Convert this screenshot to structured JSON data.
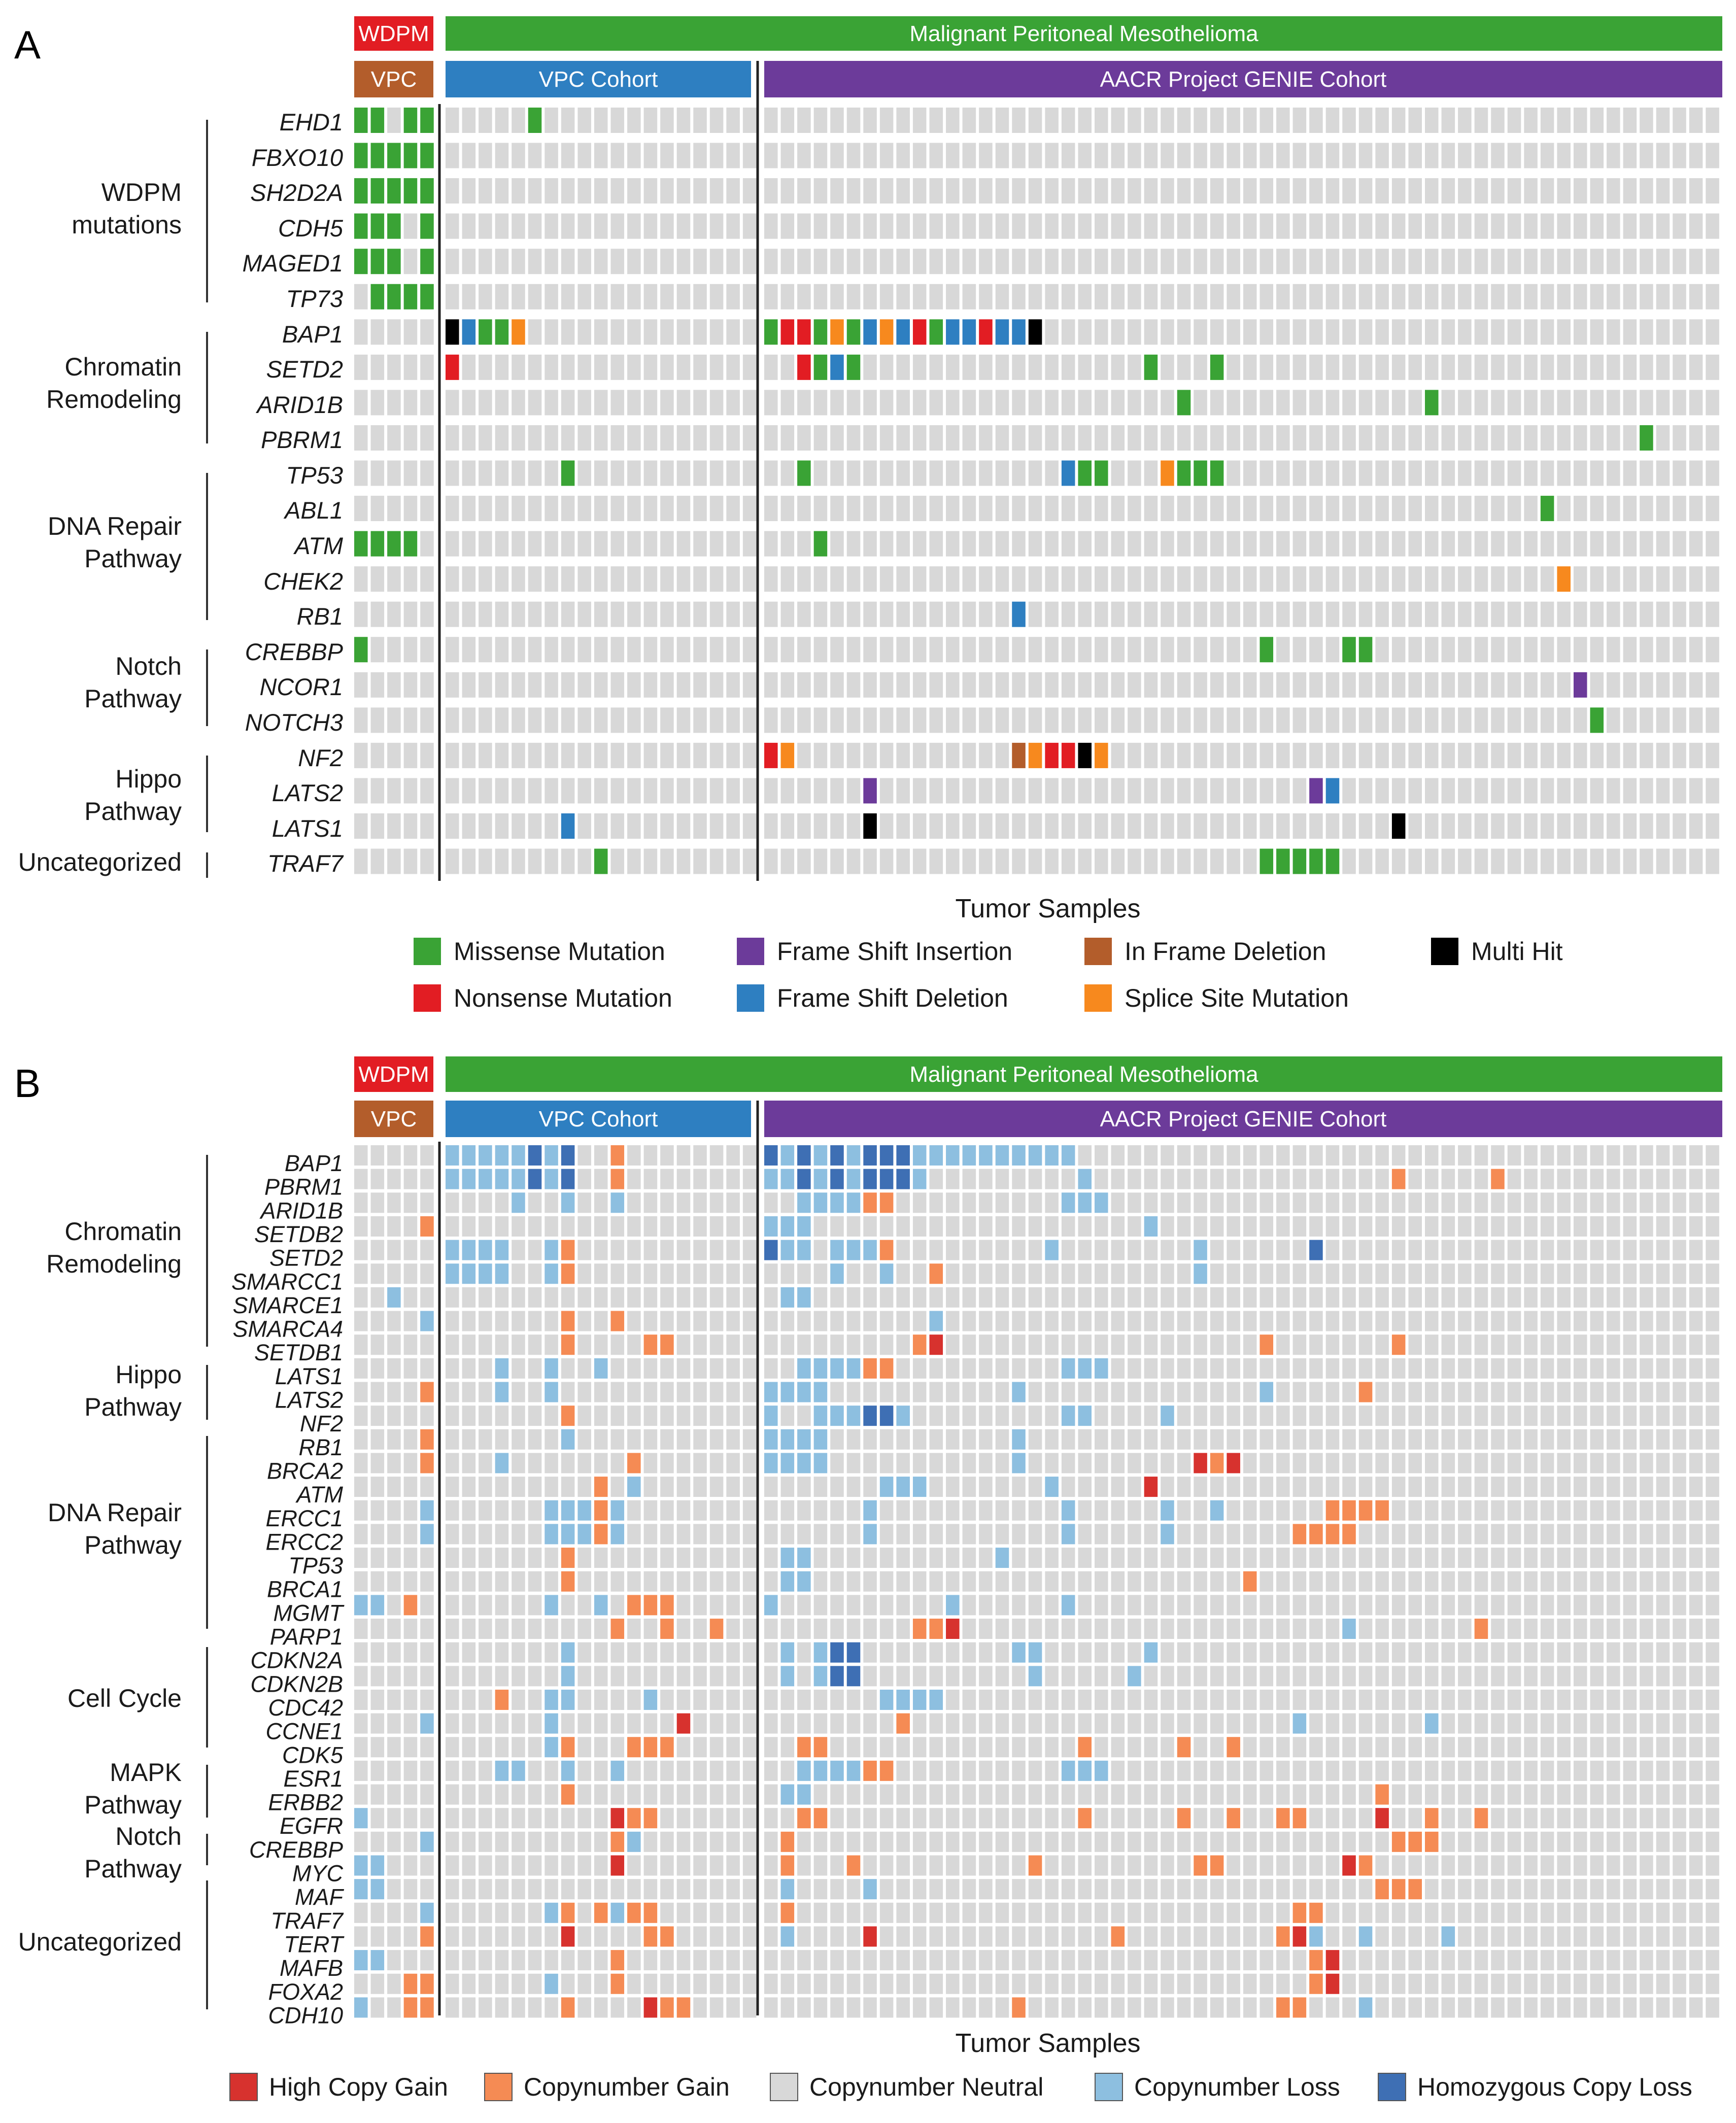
{
  "colors": {
    "wdpm": "#e21d23",
    "vpc": "#b35d2b",
    "mpm": "#3aa335",
    "vpc_cohort": "#2e7fc1",
    "genie": "#6c3b9a",
    "neutral": "#d8d8d8"
  },
  "chart_data": [
    {
      "panel": "A",
      "type": "heatmap",
      "title": "Malignant Peritoneal Mesothelioma",
      "xlabel": "Tumor Samples",
      "groups": [
        {
          "top": "WDPM",
          "label": "VPC",
          "n": 5
        },
        {
          "top": "Malignant Peritoneal Mesothelioma",
          "label": "VPC Cohort",
          "n": 19
        },
        {
          "top": "Malignant Peritoneal Mesothelioma",
          "label": "AACR Project GENIE Cohort",
          "n": 58
        }
      ],
      "gene_groups": [
        {
          "name": "WDPM mutations",
          "genes": [
            "EHD1",
            "FBXO10",
            "SH2D2A",
            "CDH5",
            "MAGED1",
            "TP73"
          ]
        },
        {
          "name": "Chromatin Remodeling",
          "genes": [
            "BAP1",
            "SETD2",
            "ARID1B",
            "PBRM1"
          ]
        },
        {
          "name": "DNA Repair Pathway",
          "genes": [
            "TP53",
            "ABL1",
            "ATM",
            "CHEK2",
            "RB1"
          ]
        },
        {
          "name": "Notch Pathway",
          "genes": [
            "CREBBP",
            "NCOR1",
            "NOTCH3"
          ]
        },
        {
          "name": "Hippo Pathway",
          "genes": [
            "NF2",
            "LATS2",
            "LATS1"
          ]
        },
        {
          "name": "Uncategorized",
          "genes": [
            "TRAF7"
          ]
        }
      ],
      "legend": [
        {
          "code": "M",
          "label": "Missense Mutation",
          "color": "#3aa335"
        },
        {
          "code": "I",
          "label": "Frame Shift Insertion",
          "color": "#6c3b9a"
        },
        {
          "code": "F",
          "label": "In Frame Deletion",
          "color": "#b35d2b"
        },
        {
          "code": "X",
          "label": "Multi Hit",
          "color": "#000000"
        },
        {
          "code": "N",
          "label": "Nonsense Mutation",
          "color": "#e21d23"
        },
        {
          "code": "D",
          "label": "Frame Shift Deletion",
          "color": "#2e7fc1"
        },
        {
          "code": "S",
          "label": "Splice Site Mutation",
          "color": "#f7891e"
        }
      ],
      "matrix": {
        "EHD1": "MM.MM|.....M.............|..........................................................",
        "FBXO10": "MMMMM|...................|..........................................................",
        "SH2D2A": "MMMMM|...................|..........................................................",
        "CDH5": "MMM.M|...................|..........................................................",
        "MAGED1": "MMM.M|...................|..........................................................",
        "TP73": ".MMMM|...................|..........................................................",
        "BAP1": ".....|XDMMS..............|MNNMSMDSDNMDDNDDX.........................................",
        "SETD2": ".....|N..................|..NMDM.................M...M..............................",
        "ARID1B": ".....|...................|.........................M..............M.................",
        "PBRM1": ".....|...................|.....................................................M....",
        "TP53": ".....|.......M...........|..M...............DMM...SMMM............................",
        "ABL1": ".....|...................|...............................................M..........",
        "ATM": "MMMM.|...................|...M......................................................",
        "CHEK2": ".....|...................|................................................S.........",
        "RB1": ".....|...................|...............D..........................................",
        "CREBBP": "M....|...................|..............................M....MM.....................",
        "NCOR1": ".....|...................|.................................................I........",
        "NOTCH3": ".....|...................|..................................................M.......",
        "NF2": ".....|...................|NS.............FSNNXS..................................",
        "LATS2": ".....|...................|......I..........................ID........................",
        "LATS1": ".....|.......D...........|......X...............................X...................",
        "TRAF7": ".....|.........M.........|..............................MMMMM...................."
      }
    },
    {
      "panel": "B",
      "type": "heatmap",
      "title": "Malignant Peritoneal Mesothelioma",
      "xlabel": "Tumor Samples",
      "groups": [
        {
          "top": "WDPM",
          "label": "VPC",
          "n": 5
        },
        {
          "top": "Malignant Peritoneal Mesothelioma",
          "label": "VPC Cohort",
          "n": 19
        },
        {
          "top": "Malignant Peritoneal Mesothelioma",
          "label": "AACR Project GENIE Cohort",
          "n": 58
        }
      ],
      "gene_groups": [
        {
          "name": "Chromatin Remodeling",
          "genes": [
            "BAP1",
            "PBRM1",
            "ARID1B",
            "SETDB2",
            "SETD2",
            "SMARCC1",
            "SMARCE1",
            "SMARCA4",
            "SETDB1"
          ]
        },
        {
          "name": "Hippo Pathway",
          "genes": [
            "LATS1",
            "LATS2",
            "NF2"
          ]
        },
        {
          "name": "DNA Repair Pathway",
          "genes": [
            "RB1",
            "BRCA2",
            "ATM",
            "ERCC1",
            "ERCC2",
            "TP53",
            "BRCA1",
            "MGMT",
            "PARP1"
          ]
        },
        {
          "name": "Cell Cycle",
          "genes": [
            "CDKN2A",
            "CDKN2B",
            "CDC42",
            "CCNE1",
            "CDK5"
          ]
        },
        {
          "name": "MAPK Pathway",
          "genes": [
            "ESR1",
            "ERBB2"
          ]
        },
        {
          "name": "Notch Pathway",
          "genes": [
            "EGFR",
            "CREBBP"
          ]
        },
        {
          "name": "Uncategorized",
          "genes": [
            "MYC",
            "MAF",
            "TRAF7",
            "TERT",
            "MAFB",
            "FOXA2",
            "CDH10"
          ]
        }
      ],
      "legend": [
        {
          "code": "H",
          "label": "High Copy Gain",
          "color": "#d7322e"
        },
        {
          "code": "G",
          "label": "Copynumber Gain",
          "color": "#f58b54"
        },
        {
          "code": ".",
          "label": "Copynumber Neutral",
          "color": "#d8d8d8"
        },
        {
          "code": "L",
          "label": "Copynumber Loss",
          "color": "#8dbfe0"
        },
        {
          "code": "Z",
          "label": "Homozygous Copy Loss",
          "color": "#3e6fb4"
        }
      ],
      "matrix": {
        "BAP1": ".....|LLLLLZLZ..G........|ZLZLZLZZZLLLLLLLLLL.......................................",
        "PBRM1": ".....|LLLLLZLZ..G........|LLZLZLZZZL.........L..................G.....G.............",
        "ARID1B": ".....|....L..L..L........|..LLLLGG..........LLL.................................",
        "SETDB2": "....G|...................|LLL....................L......................................",
        "SETD2": ".....|LLLL..LG...........|ZLL.LLLG.........L........L......Z.................",
        "SMARCC1": ".....|LLLL..LG...........|....L..L..G...............L........................",
        "SMARCE1": "..L..|...................|.LL..........................................................",
        "SMARCA4": "....L|.......G..G........|..........L............................................",
        "SETDB1": ".....|.......G....GG.....|.........GH...................G.......G.........",
        "LATS1": ".....|...L..L..L........|..LLLLGG..........LLL.................................",
        "LATS2": "....G|...L..L...........|LLLL...........L..............L.....G..........",
        "NF2": ".....|.......G...........|L..LLLZZL.........LL....L...................................",
        "RB1": "....G|.......L...........|LLLL...........L..............................................",
        "BRCA2": "....G|...L.......G.......|LLLL...........L..........HGH.......................",
        "ATM": ".....|.........G.L.......|.......LLL.......L.....H..............................",
        "ERCC1": "....L|......LLLGL........|......L...........L.....L..L......GGGG..........",
        "ERCC2": "....L|......LLLGL........|......L...........L.....L.......GGGG..........",
        "TP53": ".....|.......G...........|.LL...........L...................................................",
        "BRCA1": ".....|.......G...........|.LL..........................G........................",
        "MGMT": "LL.G.|......L..L.GGG.....|L..........L......L..................................",
        "PARP1": ".....|..........G..G..G..|.........GGH.......................L.......G.........",
        "CDKN2A": ".....|.......L...........|.L.LZZ.........LL......L........................",
        "CDKN2B": ".....|.......L...........|.L.LZZ..........L.....L..........................",
        "CDC42": ".....|...G..LL....L......|.......LLLL..........................................",
        "CCNE1": "....L|......L.......H....|........G.......................L.......L.........",
        "CDK5": ".....|......LG...GGG.....|..GG...............G.....G..G......................",
        "ESR1": ".....|...LL..L..L........|..LLLLGG..........LLL.................................",
        "ERBB2": ".....|.......G...........|.LL..................................G...........",
        "EGFR": "L....|..........HGG......|..GG...............G.....G..G..GG....H..G..G......",
        "CREBBP": "....L|..........GL.......|.G....................................GGG.............",
        "MYC": "LL...|..........H........|.G...G..........G.........GG.......HG................",
        "MAF": "LL...|...................|.L....L..............................GGG...............",
        "TRAF7": "....L|......LG.GLGG......|.G..............................GG..................",
        "TERT": "....G|.......H....GG.....|.L....H..............G.........GHL..L....L.......",
        "MAFB": "LL...|..........G........|.................................GH..........................",
        "FOXA2": "...GG|......L...G........|.................................GH...........................",
        "CDH10": "L..GG|.......G....HGG....|...............G...............GG...L................."
      }
    }
  ],
  "panelA": {
    "panel_label": "A",
    "wdpm_label": "WDPM",
    "top_label": "Malignant Peritoneal Mesothelioma",
    "vpc_label": "VPC",
    "vpc_cohort_label": "VPC Cohort",
    "genie_label": "AACR Project GENIE Cohort",
    "xlabel": "Tumor Samples",
    "cat_lines": [
      [
        "WDPM",
        "mutations"
      ],
      [
        "Chromatin",
        "Remodeling"
      ],
      [
        "DNA Repair",
        "Pathway"
      ],
      [
        "Notch",
        "Pathway"
      ],
      [
        "Hippo",
        "Pathway"
      ],
      [
        "Uncategorized"
      ]
    ]
  },
  "panelB": {
    "panel_label": "B",
    "wdpm_label": "WDPM",
    "top_label": "Malignant Peritoneal Mesothelioma",
    "vpc_label": "VPC",
    "vpc_cohort_label": "VPC Cohort",
    "genie_label": "AACR Project GENIE Cohort",
    "xlabel": "Tumor Samples",
    "cat_lines": [
      [
        "Chromatin",
        "Remodeling"
      ],
      [
        "Hippo",
        "Pathway"
      ],
      [
        "DNA Repair",
        "Pathway"
      ],
      [
        "Cell Cycle"
      ],
      [
        "MAPK",
        "Pathway"
      ],
      [
        "Notch",
        "Pathway"
      ],
      [
        "Uncategorized"
      ]
    ]
  }
}
